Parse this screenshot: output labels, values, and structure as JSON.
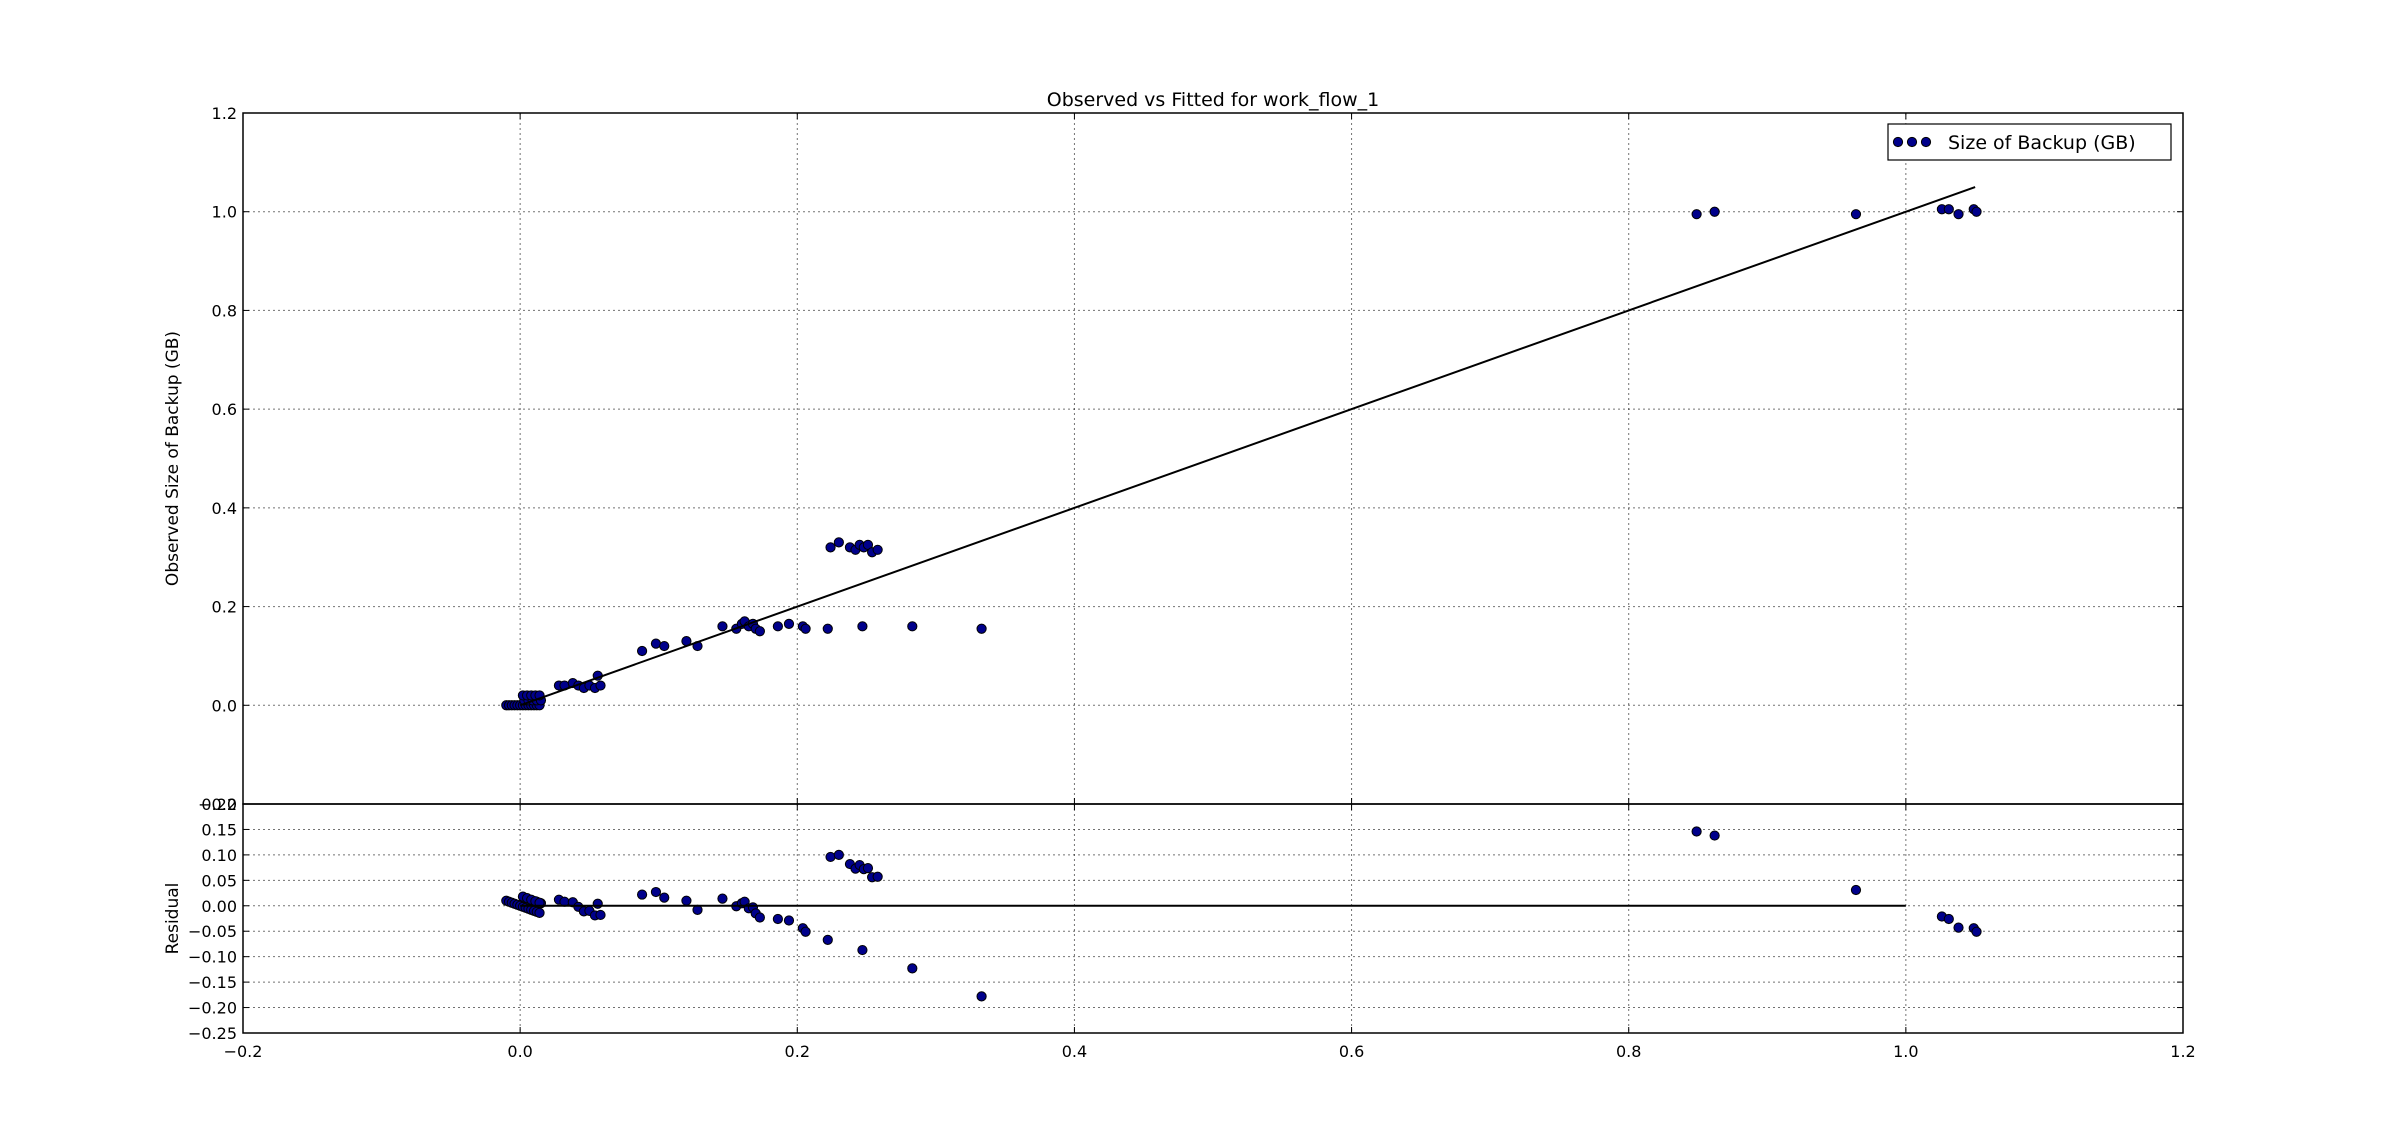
{
  "chart_data": [
    {
      "type": "scatter",
      "title": "Observed vs Fitted for work_flow_1",
      "xlabel": "",
      "ylabel": "Observed Size of Backup (GB)",
      "xlim": [
        -0.2,
        1.2
      ],
      "ylim": [
        -0.2,
        1.2
      ],
      "x_ticks": [
        -0.2,
        0.0,
        0.2,
        0.4,
        0.6,
        0.8,
        1.0,
        1.2
      ],
      "y_ticks": [
        -0.2,
        0.0,
        0.2,
        0.4,
        0.6,
        0.8,
        1.0,
        1.2
      ],
      "x_tick_labels": [
        "",
        "",
        "",
        "",
        "",
        "",
        "",
        ""
      ],
      "y_tick_labels": [
        "−0.2",
        "0.0",
        "0.2",
        "0.4",
        "0.6",
        "0.8",
        "1.0",
        "1.2"
      ],
      "grid": true,
      "legend_position": "top-right",
      "marker_color": "#00008B",
      "line_color": "#000000",
      "series": [
        {
          "name": "Size of Backup (GB)",
          "kind": "scatter",
          "x": [
            -0.01,
            -0.008,
            -0.006,
            -0.004,
            -0.002,
            0.0,
            0.002,
            0.004,
            0.006,
            0.008,
            0.01,
            0.012,
            0.014,
            0.003,
            0.006,
            0.009,
            0.012,
            0.015,
            0.002,
            0.005,
            0.008,
            0.011,
            0.014,
            0.028,
            0.032,
            0.038,
            0.042,
            0.046,
            0.05,
            0.054,
            0.056,
            0.058,
            0.088,
            0.098,
            0.104,
            0.12,
            0.128,
            0.146,
            0.156,
            0.16,
            0.162,
            0.165,
            0.168,
            0.17,
            0.173,
            0.186,
            0.194,
            0.204,
            0.206,
            0.222,
            0.247,
            0.283,
            0.333,
            0.224,
            0.23,
            0.238,
            0.242,
            0.245,
            0.248,
            0.251,
            0.254,
            0.258,
            0.849,
            0.862,
            0.964,
            1.026,
            1.031,
            1.038,
            1.049,
            1.051
          ],
          "y": [
            0.0,
            0.0,
            0.0,
            0.0,
            0.0,
            0.0,
            0.0,
            0.0,
            0.0,
            0.0,
            0.0,
            0.0,
            0.0,
            0.01,
            0.01,
            0.01,
            0.01,
            0.01,
            0.02,
            0.02,
            0.02,
            0.02,
            0.02,
            0.04,
            0.04,
            0.045,
            0.04,
            0.035,
            0.04,
            0.035,
            0.06,
            0.04,
            0.11,
            0.125,
            0.12,
            0.13,
            0.12,
            0.16,
            0.155,
            0.165,
            0.17,
            0.16,
            0.165,
            0.155,
            0.15,
            0.16,
            0.165,
            0.16,
            0.155,
            0.155,
            0.16,
            0.16,
            0.155,
            0.32,
            0.33,
            0.32,
            0.315,
            0.325,
            0.32,
            0.325,
            0.31,
            0.315,
            0.995,
            1.0,
            0.995,
            1.005,
            1.005,
            0.995,
            1.005,
            1.0
          ]
        },
        {
          "kind": "line",
          "x": [
            0.0,
            1.05
          ],
          "y": [
            0.0,
            1.05
          ]
        }
      ]
    },
    {
      "type": "scatter",
      "title": "",
      "xlabel": "",
      "ylabel": "Residual",
      "xlim": [
        -0.2,
        1.2
      ],
      "ylim": [
        -0.25,
        0.2
      ],
      "x_ticks": [
        -0.2,
        0.0,
        0.2,
        0.4,
        0.6,
        0.8,
        1.0,
        1.2
      ],
      "y_ticks": [
        -0.25,
        -0.2,
        -0.15,
        -0.1,
        -0.05,
        0.0,
        0.05,
        0.1,
        0.15,
        0.2
      ],
      "x_tick_labels": [
        "−0.2",
        "0.0",
        "0.2",
        "0.4",
        "0.6",
        "0.8",
        "1.0",
        "1.2"
      ],
      "y_tick_labels": [
        "−0.25",
        "−0.20",
        "−0.15",
        "−0.10",
        "−0.05",
        "0.00",
        "0.05",
        "0.10",
        "0.15",
        "0.20"
      ],
      "grid": true,
      "marker_color": "#00008B",
      "line_color": "#000000",
      "series": [
        {
          "kind": "scatter",
          "x": [
            -0.01,
            -0.008,
            -0.006,
            -0.004,
            -0.002,
            0.0,
            0.002,
            0.004,
            0.006,
            0.008,
            0.01,
            0.012,
            0.014,
            0.003,
            0.006,
            0.009,
            0.012,
            0.015,
            0.002,
            0.005,
            0.008,
            0.011,
            0.014,
            0.028,
            0.032,
            0.038,
            0.042,
            0.046,
            0.05,
            0.054,
            0.056,
            0.058,
            0.088,
            0.098,
            0.104,
            0.12,
            0.128,
            0.146,
            0.156,
            0.16,
            0.162,
            0.165,
            0.168,
            0.17,
            0.173,
            0.186,
            0.194,
            0.204,
            0.206,
            0.222,
            0.247,
            0.283,
            0.333,
            0.224,
            0.23,
            0.238,
            0.242,
            0.245,
            0.248,
            0.251,
            0.254,
            0.258,
            0.849,
            0.862,
            0.964,
            1.026,
            1.031,
            1.038,
            1.049,
            1.051
          ],
          "y": [
            0.01,
            0.008,
            0.006,
            0.004,
            0.002,
            0.0,
            -0.002,
            -0.004,
            -0.006,
            -0.008,
            -0.01,
            -0.012,
            -0.014,
            0.015,
            0.012,
            0.01,
            0.008,
            0.005,
            0.018,
            0.015,
            0.012,
            0.009,
            0.006,
            0.012,
            0.008,
            0.007,
            -0.002,
            -0.011,
            -0.01,
            -0.019,
            0.004,
            -0.018,
            0.022,
            0.027,
            0.016,
            0.01,
            -0.008,
            0.014,
            -0.001,
            0.005,
            0.008,
            -0.005,
            -0.003,
            -0.015,
            -0.023,
            -0.026,
            -0.029,
            -0.044,
            -0.051,
            -0.067,
            -0.087,
            -0.123,
            -0.178,
            0.096,
            0.1,
            0.082,
            0.073,
            0.08,
            0.072,
            0.074,
            0.056,
            0.057,
            0.146,
            0.138,
            0.031,
            -0.021,
            -0.026,
            -0.043,
            -0.044,
            -0.051
          ]
        },
        {
          "kind": "line",
          "x": [
            0.0,
            1.0
          ],
          "y": [
            0.0,
            0.0
          ]
        }
      ]
    }
  ]
}
